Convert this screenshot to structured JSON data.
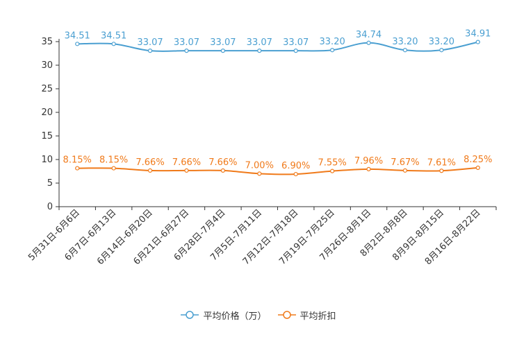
{
  "chart_data": {
    "type": "line",
    "categories": [
      "5月31日-6月6日",
      "6月7日-6月13日",
      "6月14日-6月20日",
      "6月21日-6月27日",
      "6月28日-7月4日",
      "7月5日-7月11日",
      "7月12日-7月18日",
      "7月19日-7月25日",
      "7月26日-8月1日",
      "8月2日-8月8日",
      "8月9日-8月15日",
      "8月16日-8月22日"
    ],
    "series": [
      {
        "name": "平均价格（万）",
        "color": "#4a9fd1",
        "values": [
          34.51,
          34.51,
          33.07,
          33.07,
          33.07,
          33.07,
          33.07,
          33.2,
          34.74,
          33.2,
          33.2,
          34.91
        ],
        "labels": [
          "34.51",
          "34.51",
          "33.07",
          "33.07",
          "33.07",
          "33.07",
          "33.07",
          "33.20",
          "34.74",
          "33.20",
          "33.20",
          "34.91"
        ]
      },
      {
        "name": "平均折扣",
        "color": "#f07a1a",
        "values": [
          8.15,
          8.15,
          7.66,
          7.66,
          7.66,
          7.0,
          6.9,
          7.55,
          7.96,
          7.67,
          7.61,
          8.25
        ],
        "labels": [
          "8.15%",
          "8.15%",
          "7.66%",
          "7.66%",
          "7.66%",
          "7.00%",
          "6.90%",
          "7.55%",
          "7.96%",
          "7.67%",
          "7.61%",
          "8.25%"
        ]
      }
    ],
    "yticks": [
      0,
      5,
      10,
      15,
      20,
      25,
      30,
      35
    ],
    "ylim": [
      0,
      35
    ],
    "title": "",
    "xlabel": "",
    "ylabel": "",
    "legend_position": "bottom-center",
    "grid": false
  }
}
